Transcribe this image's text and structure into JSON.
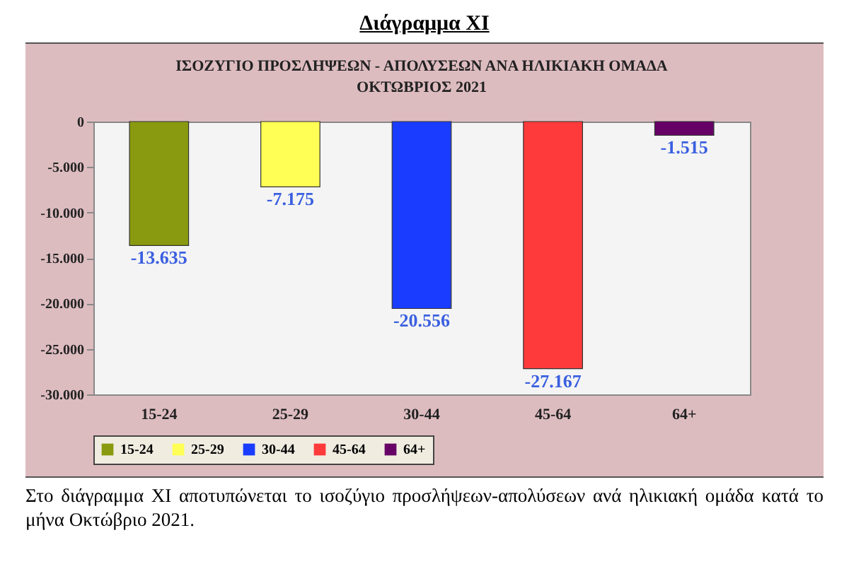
{
  "chart_data": {
    "type": "bar",
    "title": "Διάγραμμα XI",
    "subtitle": "ΙΣΟΖΥΓΙΟ  ΠΡΟΣΛΗΨΕΩΝ - ΑΠΟΛΥΣΕΩΝ ΑΝΑ ΗΛΙΚΙΑΚΗ ΟΜΑΔΑ\nΟΚΤΩΒΡΙΟΣ  2021",
    "categories": [
      "15-24",
      "25-29",
      "30-44",
      "45-64",
      "64+"
    ],
    "series": [
      {
        "name": "15-24",
        "color": "#8a9a10",
        "values": [
          -13635,
          null,
          null,
          null,
          null
        ],
        "value_labels": [
          "-13.635",
          null,
          null,
          null,
          null
        ]
      },
      {
        "name": "25-29",
        "color": "#ffff55",
        "values": [
          null,
          -7175,
          null,
          null,
          null
        ],
        "value_labels": [
          null,
          "-7.175",
          null,
          null,
          null
        ]
      },
      {
        "name": "30-44",
        "color": "#1a3cff",
        "values": [
          null,
          null,
          -20556,
          null,
          null
        ],
        "value_labels": [
          null,
          null,
          "-20.556",
          null,
          null
        ]
      },
      {
        "name": "45-64",
        "color": "#ff3a3a",
        "values": [
          null,
          null,
          null,
          -27167,
          null
        ],
        "value_labels": [
          null,
          null,
          null,
          "-27.167",
          null
        ]
      },
      {
        "name": "64+",
        "color": "#660066",
        "values": [
          null,
          null,
          null,
          null,
          -1515
        ],
        "value_labels": [
          null,
          null,
          null,
          null,
          "-1.515"
        ]
      }
    ],
    "ylim": [
      -30000,
      0
    ],
    "yticks": [
      0,
      {
        "value": -5000,
        "label": "-5.000"
      },
      {
        "value": -10000,
        "label": "-10.000"
      },
      {
        "value": -15000,
        "label": "-15.000"
      },
      {
        "value": -20000,
        "label": "-20.000"
      },
      {
        "value": -25000,
        "label": "-25.000"
      },
      {
        "value": -30000,
        "label": "-30.000"
      }
    ],
    "legend": "bottom",
    "annotations": [
      "Στο διάγραμμα XI αποτυπώνεται το ισοζύγιο προσλήψεων-απολύσεων ανά ηλικιακή ομάδα κατά το μήνα Οκτώβριο 2021."
    ]
  }
}
